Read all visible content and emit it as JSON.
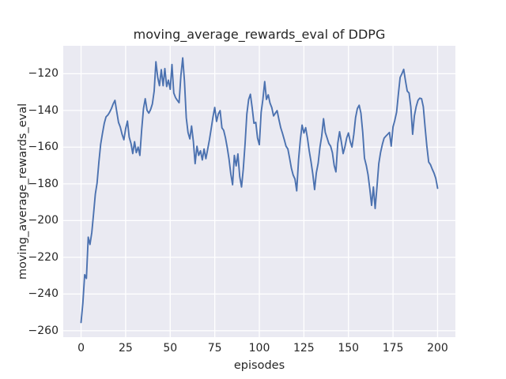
{
  "title": "moving_average_rewards_eval of DDPG",
  "chart_data": {
    "type": "line",
    "title": "moving_average_rewards_eval of DDPG",
    "xlabel": "episodes",
    "ylabel": "moving_average_rewards_eval",
    "xlim": [
      -10,
      210
    ],
    "ylim": [
      -263.5,
      -104.8
    ],
    "x_ticks": [
      0,
      25,
      50,
      75,
      100,
      125,
      150,
      175,
      200
    ],
    "y_ticks": [
      -120,
      -140,
      -160,
      -180,
      -200,
      -220,
      -240,
      -260
    ],
    "grid": true,
    "legend_position": "none",
    "style": {
      "figure_bg": "#ffffff",
      "axes_bg": "#eaeaf2",
      "grid_color": "#ffffff",
      "line_color": "#4c72b0",
      "text_color": "#262626"
    },
    "series": [
      {
        "name": "moving_average_rewards_eval",
        "x_start": 0,
        "x_step": 1,
        "y": [
          -255.5,
          -245,
          -229.5,
          -231.5,
          -209,
          -213,
          -206.5,
          -196.5,
          -185.5,
          -179.5,
          -168,
          -158.5,
          -152.5,
          -147,
          -143.5,
          -142.5,
          -141,
          -139,
          -136.5,
          -134.5,
          -140.5,
          -146.5,
          -149,
          -153,
          -156,
          -150,
          -145.8,
          -154.5,
          -158,
          -163.5,
          -157,
          -163,
          -160,
          -164.5,
          -150.5,
          -139,
          -133.6,
          -140,
          -141.5,
          -139.5,
          -136.5,
          -129.5,
          -113.5,
          -122,
          -126.5,
          -117.8,
          -126.5,
          -117.2,
          -127,
          -123.5,
          -128.5,
          -115,
          -130.5,
          -133,
          -134.5,
          -135.8,
          -121,
          -111.4,
          -124,
          -144,
          -152,
          -155.5,
          -148.5,
          -157,
          -169,
          -159.5,
          -164.5,
          -162,
          -167,
          -161,
          -166.3,
          -161.3,
          -156,
          -150,
          -143.5,
          -138.4,
          -146,
          -142,
          -140.1,
          -149.5,
          -150.8,
          -155,
          -160.2,
          -166.6,
          -174.5,
          -180.5,
          -164.5,
          -170.2,
          -163.7,
          -176,
          -181.7,
          -172,
          -158,
          -142,
          -134,
          -131.2,
          -138.7,
          -147,
          -146.5,
          -155,
          -158.7,
          -141,
          -134,
          -124.3,
          -134,
          -131.5,
          -136,
          -138.5,
          -143,
          -141.5,
          -140.1,
          -145,
          -149.5,
          -152.5,
          -156,
          -159.5,
          -161,
          -166,
          -171.6,
          -175.2,
          -177.4,
          -183.8,
          -167,
          -155.9,
          -148,
          -152.3,
          -149.4,
          -155.1,
          -162,
          -168,
          -174.5,
          -183.1,
          -174,
          -168.8,
          -160,
          -154,
          -144.5,
          -152,
          -155,
          -158,
          -159.5,
          -163,
          -170,
          -173.5,
          -158,
          -151.6,
          -157,
          -163.5,
          -160,
          -155,
          -152.3,
          -157,
          -160,
          -153,
          -144,
          -139,
          -137.2,
          -141.5,
          -152,
          -166,
          -170,
          -175,
          -183,
          -191.7,
          -181.7,
          -193.4,
          -181.7,
          -169,
          -163,
          -158.5,
          -155.1,
          -154,
          -153,
          -152,
          -159.4,
          -149,
          -145.5,
          -141,
          -131,
          -122,
          -120,
          -117.6,
          -124,
          -129.5,
          -130.5,
          -138,
          -153,
          -143,
          -137.9,
          -134.5,
          -133.3,
          -133.6,
          -138,
          -149.4,
          -159.5,
          -168.1,
          -169.5,
          -172,
          -174.1,
          -177,
          -182.4
        ]
      }
    ]
  }
}
